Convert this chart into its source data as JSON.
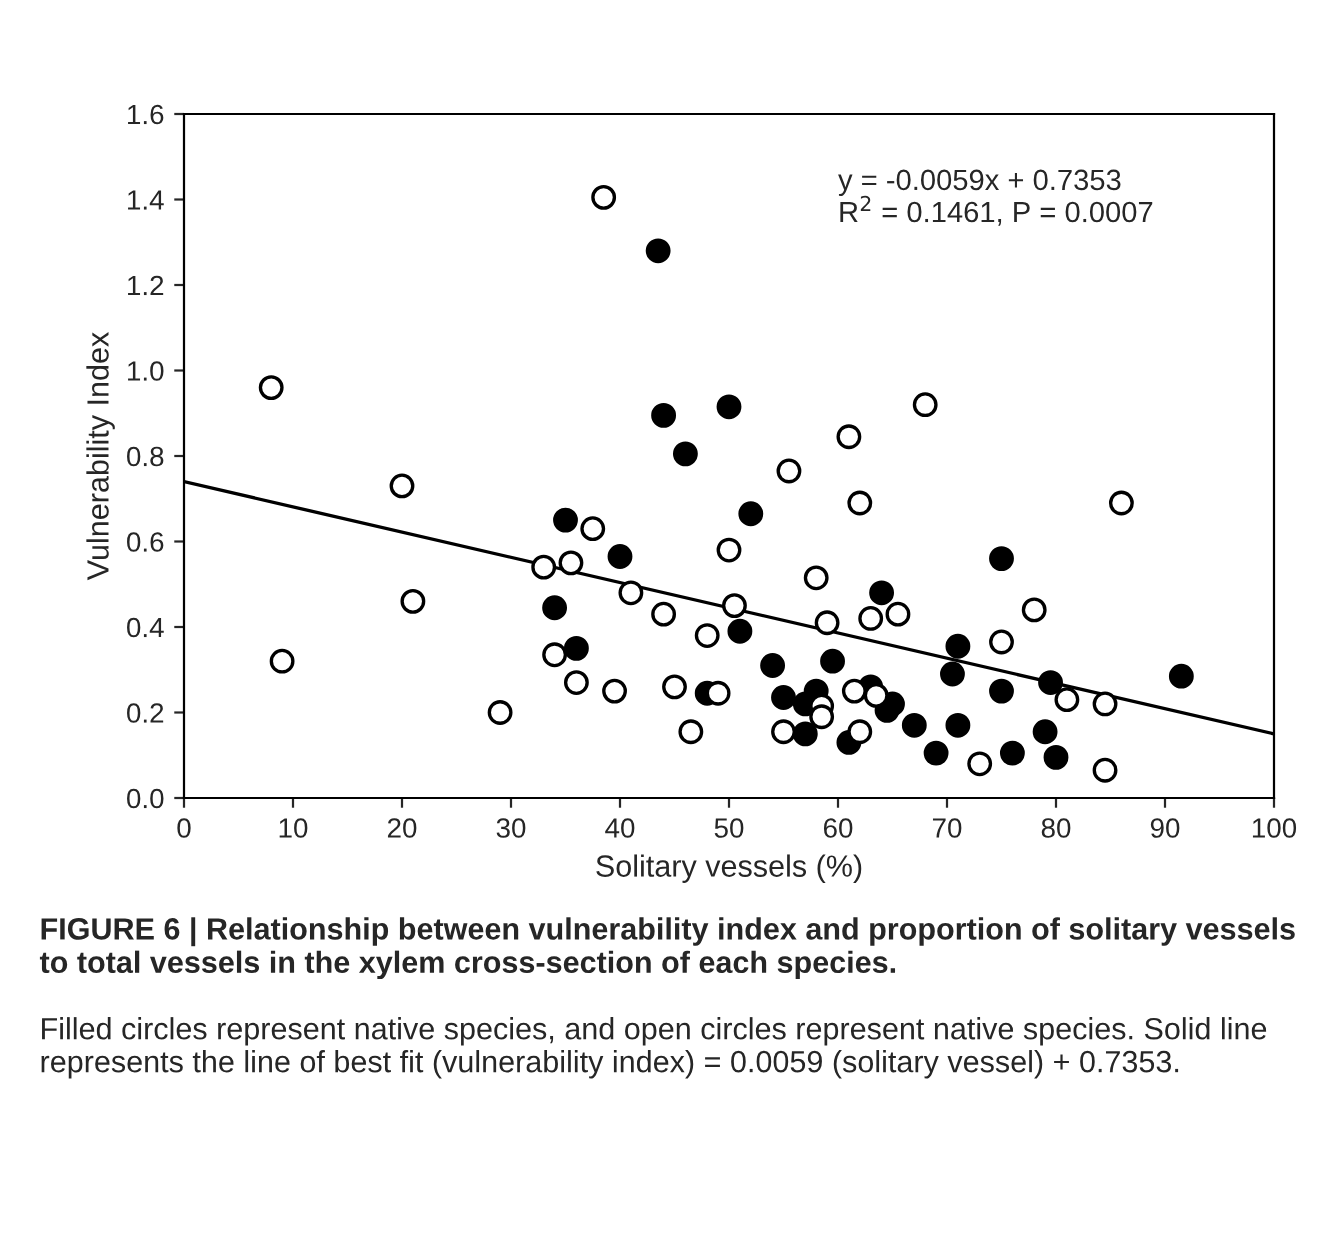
{
  "chart_data": {
    "type": "scatter",
    "xlabel": "Solitary vessels (%)",
    "ylabel": "Vulnerability Index",
    "xlim": [
      0,
      100
    ],
    "ylim": [
      0,
      1.6
    ],
    "xticks": [
      0,
      10,
      20,
      30,
      40,
      50,
      60,
      70,
      80,
      90,
      100
    ],
    "yticks": [
      {
        "value": 0,
        "label": "0.0"
      },
      0.2,
      0.4,
      0.6,
      0.8,
      {
        "value": 1,
        "label": "1.0"
      },
      1.2,
      1.4,
      1.6
    ],
    "grid": false,
    "legend": false,
    "marker": "circle",
    "series": [
      {
        "color": "#000000",
        "x": [
          35,
          43.5,
          44,
          46,
          50,
          52,
          40,
          34,
          36,
          51,
          54,
          55,
          57,
          57,
          58,
          59.5,
          61,
          63,
          64,
          64.5,
          65,
          67,
          69,
          70.5,
          71,
          71,
          75,
          75,
          76,
          79,
          79.5,
          80,
          91.5,
          48
        ],
        "values": [
          0.65,
          1.28,
          0.895,
          0.805,
          0.915,
          0.665,
          0.565,
          0.445,
          0.35,
          0.39,
          0.31,
          0.235,
          0.22,
          0.15,
          0.25,
          0.32,
          0.13,
          0.26,
          0.48,
          0.205,
          0.22,
          0.17,
          0.105,
          0.29,
          0.355,
          0.17,
          0.56,
          0.25,
          0.105,
          0.155,
          0.27,
          0.095,
          0.285,
          0.245
        ]
      },
      {
        "color": "#ffffff",
        "x": [
          8,
          9,
          20,
          21,
          29,
          33,
          34,
          35.5,
          36,
          37.5,
          38.5,
          39.5,
          41,
          44,
          45,
          46.5,
          48,
          49,
          50,
          50.5,
          55,
          55.5,
          58,
          58.5,
          59,
          58.5,
          61,
          61.5,
          62,
          62,
          63,
          63.5,
          65.5,
          68,
          73,
          75,
          78,
          81,
          84.5,
          84.5,
          86
        ],
        "values": [
          0.96,
          0.32,
          0.73,
          0.46,
          0.2,
          0.54,
          0.335,
          0.55,
          0.27,
          0.63,
          1.405,
          0.25,
          0.48,
          0.43,
          0.26,
          0.155,
          0.38,
          0.245,
          0.58,
          0.45,
          0.155,
          0.765,
          0.515,
          0.215,
          0.41,
          0.19,
          0.845,
          0.25,
          0.69,
          0.155,
          0.42,
          0.24,
          0.43,
          0.92,
          0.08,
          0.365,
          0.44,
          0.23,
          0.22,
          0.065,
          0.69
        ]
      },
      {
        "type": "line",
        "color": "#000000",
        "x": [
          0,
          100
        ],
        "values": [
          0.74,
          0.15
        ],
        "line_style": "solid",
        "marker": "none"
      }
    ],
    "annotations": [
      {
        "text": "y = -0.0059x + 0.7353"
      },
      {
        "text": "R$^{2}$ = 0.1461, P = 0.0007"
      },
      "FIGURE 6 | Relationship between vulnerability index and proportion of solitary vessels to total vessels in the xylem cross-section of each species.",
      "Filled circles represent native species, and open circles represent native species. Solid line represents the line of best fit (vulnerability index) = 0.0059 (solitary vessel) + 0.7353."
    ]
  }
}
